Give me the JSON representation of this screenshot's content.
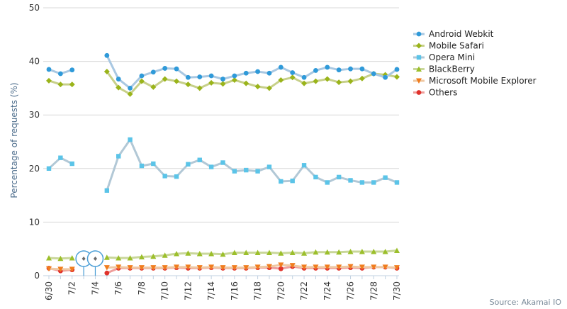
{
  "chart_data": {
    "type": "line",
    "title": "",
    "xlabel": "",
    "ylabel": "Percentage of requests (%)",
    "ylim": [
      0,
      50
    ],
    "y_ticks": [
      0,
      10,
      20,
      30,
      40,
      50
    ],
    "x_tick_labels": [
      "6/30",
      "7/2",
      "7/4",
      "7/6",
      "7/8",
      "7/10",
      "7/12",
      "7/14",
      "7/16",
      "7/18",
      "7/20",
      "7/22",
      "7/24",
      "7/26",
      "7/28",
      "7/30"
    ],
    "x": [
      "6/30",
      "7/1",
      "7/2",
      "7/3",
      "7/4",
      "7/5",
      "7/6",
      "7/7",
      "7/8",
      "7/9",
      "7/10",
      "7/11",
      "7/12",
      "7/13",
      "7/14",
      "7/15",
      "7/16",
      "7/17",
      "7/18",
      "7/19",
      "7/20",
      "7/21",
      "7/22",
      "7/23",
      "7/24",
      "7/25",
      "7/26",
      "7/27",
      "7/28",
      "7/29",
      "7/30"
    ],
    "grid": "horizontal",
    "legend_position": "right",
    "source": "Source: Akamai IO",
    "annotations": [
      {
        "x": "7/3",
        "marker": "flag"
      },
      {
        "x": "7/4",
        "marker": "flag"
      }
    ],
    "series": [
      {
        "name": "Android Webkit",
        "color": "#2f9ad9",
        "line_color": "#a9c8e2",
        "marker": "circle",
        "values": [
          38.5,
          37.7,
          38.4,
          null,
          null,
          41.1,
          36.7,
          35.0,
          37.3,
          38.0,
          38.7,
          38.6,
          37.0,
          37.1,
          37.3,
          36.7,
          37.3,
          37.8,
          38.1,
          37.8,
          38.9,
          37.9,
          37.0,
          38.3,
          38.9,
          38.4,
          38.6,
          38.6,
          37.7,
          37.0,
          38.5
        ]
      },
      {
        "name": "Mobile Safari",
        "color": "#9ab41a",
        "line_color": "#c7d08a",
        "marker": "diamond",
        "values": [
          36.4,
          35.7,
          35.7,
          null,
          null,
          38.1,
          35.1,
          33.9,
          36.3,
          35.2,
          36.7,
          36.3,
          35.7,
          35.0,
          36.0,
          35.8,
          36.5,
          35.9,
          35.3,
          35.0,
          36.5,
          37.0,
          35.9,
          36.3,
          36.7,
          36.1,
          36.3,
          36.8,
          37.7,
          37.5,
          37.1
        ]
      },
      {
        "name": "Opera Mini",
        "color": "#5bc4e8",
        "line_color": "#b2c8d6",
        "marker": "square",
        "values": [
          20.0,
          22.0,
          20.9,
          null,
          null,
          15.9,
          22.3,
          25.4,
          20.5,
          20.9,
          18.6,
          18.5,
          20.8,
          21.6,
          20.3,
          21.1,
          19.5,
          19.7,
          19.5,
          20.3,
          17.6,
          17.7,
          20.6,
          18.4,
          17.4,
          18.4,
          17.8,
          17.4,
          17.4,
          18.3,
          17.4
        ]
      },
      {
        "name": "BlackBerry",
        "color": "#9cbf2b",
        "line_color": "#c9d79a",
        "marker": "triangle",
        "values": [
          3.3,
          3.2,
          3.3,
          null,
          null,
          3.4,
          3.3,
          3.3,
          3.5,
          3.6,
          3.8,
          4.1,
          4.2,
          4.1,
          4.1,
          4.0,
          4.3,
          4.3,
          4.3,
          4.3,
          4.2,
          4.3,
          4.2,
          4.4,
          4.4,
          4.4,
          4.5,
          4.5,
          4.5,
          4.5,
          4.7
        ]
      },
      {
        "name": "Microsoft Mobile Explorer",
        "color": "#f07d1e",
        "line_color": "#efc8a3",
        "marker": "triangle-down",
        "values": [
          1.3,
          1.2,
          1.2,
          null,
          null,
          1.5,
          1.6,
          1.5,
          1.5,
          1.5,
          1.5,
          1.6,
          1.6,
          1.5,
          1.6,
          1.5,
          1.5,
          1.5,
          1.6,
          1.7,
          2.0,
          1.9,
          1.6,
          1.6,
          1.6,
          1.6,
          1.7,
          1.6,
          1.6,
          1.6,
          1.5
        ]
      },
      {
        "name": "Others",
        "color": "#e0322c",
        "line_color": "#ee9e9c",
        "marker": "circle",
        "values": [
          1.4,
          0.9,
          1.1,
          null,
          null,
          0.5,
          1.4,
          1.4,
          1.4,
          1.4,
          1.4,
          1.5,
          1.4,
          1.4,
          1.5,
          1.4,
          1.4,
          1.4,
          1.5,
          1.5,
          1.3,
          1.7,
          1.4,
          1.4,
          1.4,
          1.4,
          1.5,
          1.4,
          1.6,
          1.6,
          1.4
        ]
      }
    ]
  }
}
